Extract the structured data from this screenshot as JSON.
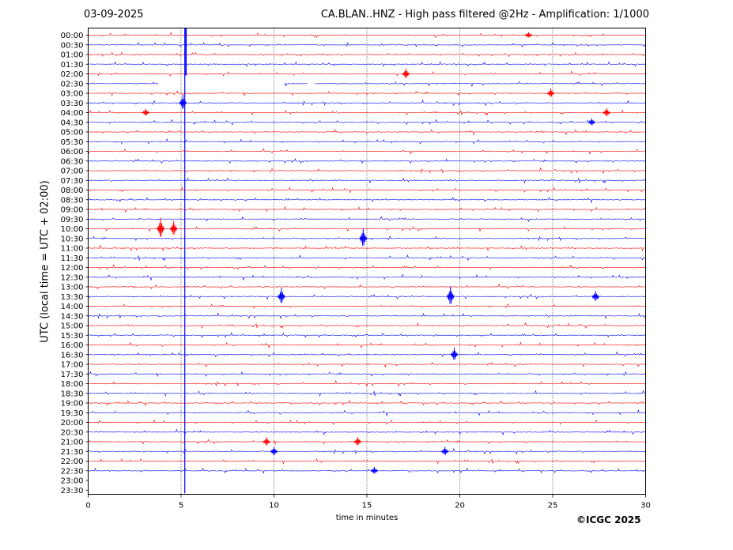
{
  "header": {
    "date": "03-09-2025",
    "title": "CA.BLAN..HNZ - High pass filtered @2Hz - Amplification: 1/1000"
  },
  "footer": {
    "copyright": "©ICGC 2025"
  },
  "colors": {
    "trace_red": "#ff0000",
    "trace_blue": "#0000ff",
    "grid": "#000000",
    "axes": "#000000"
  },
  "chart_data": {
    "type": "line",
    "title": "CA.BLAN..HNZ - High pass filtered @2Hz - Amplification: 1/1000",
    "xlabel": "time in minutes",
    "ylabel": "UTC (local time = UTC + 02:00)",
    "xlim": [
      0,
      30
    ],
    "x_ticks": [
      "0",
      "5",
      "10",
      "15",
      "20",
      "25",
      "30"
    ],
    "vertical_gridlines_at": [
      5,
      10,
      15,
      20,
      25
    ],
    "row_labels": [
      "00:00",
      "00:30",
      "01:00",
      "01:30",
      "02:00",
      "02:30",
      "03:00",
      "03:30",
      "04:00",
      "04:30",
      "05:00",
      "05:30",
      "06:00",
      "06:30",
      "07:00",
      "07:30",
      "08:00",
      "08:30",
      "09:00",
      "09:30",
      "10:00",
      "10:30",
      "11:00",
      "11:30",
      "12:00",
      "12:30",
      "13:00",
      "13:30",
      "14:00",
      "14:30",
      "15:00",
      "15:30",
      "16:00",
      "16:30",
      "17:00",
      "17:30",
      "18:00",
      "18:30",
      "19:00",
      "19:30",
      "20:00",
      "20:30",
      "21:00",
      "21:30",
      "22:00",
      "22:30",
      "23:00",
      "23:30"
    ],
    "trace_colors_alternate": [
      "red",
      "blue"
    ],
    "traces_with_data_through_row": "22:30",
    "gap": {
      "row": "02:30",
      "from_min": 3.8,
      "to_min": 10.5,
      "resume_after_min": 12.2
    },
    "events": [
      {
        "row": "00:00",
        "minute": 23.7,
        "amplitude": 0.4
      },
      {
        "row": "02:00",
        "minute": 17.1,
        "amplitude": 0.7
      },
      {
        "row": "03:00",
        "minute": 24.9,
        "amplitude": 0.6
      },
      {
        "row": "03:30",
        "minute": 5.1,
        "amplitude": 1.0
      },
      {
        "row": "04:00",
        "minute": 3.1,
        "amplitude": 0.5
      },
      {
        "row": "04:00",
        "minute": 27.9,
        "amplitude": 0.6
      },
      {
        "row": "04:30",
        "minute": 27.1,
        "amplitude": 0.5
      },
      {
        "row": "10:00",
        "minute": 3.9,
        "amplitude": 1.4
      },
      {
        "row": "10:00",
        "minute": 4.6,
        "amplitude": 1.0
      },
      {
        "row": "10:30",
        "minute": 14.8,
        "amplitude": 1.3
      },
      {
        "row": "13:30",
        "minute": 10.4,
        "amplitude": 1.1
      },
      {
        "row": "13:30",
        "minute": 19.5,
        "amplitude": 1.3
      },
      {
        "row": "13:30",
        "minute": 27.3,
        "amplitude": 0.7
      },
      {
        "row": "16:30",
        "minute": 19.7,
        "amplitude": 0.9
      },
      {
        "row": "21:00",
        "minute": 9.6,
        "amplitude": 0.6
      },
      {
        "row": "21:00",
        "minute": 14.5,
        "amplitude": 0.6
      },
      {
        "row": "21:30",
        "minute": 10.0,
        "amplitude": 0.6
      },
      {
        "row": "21:30",
        "minute": 19.2,
        "amplitude": 0.6
      },
      {
        "row": "22:30",
        "minute": 15.4,
        "amplitude": 0.5
      }
    ],
    "continuous_signal": {
      "minute": 5.2,
      "from_row": "00:00",
      "to_row": "23:30"
    }
  }
}
